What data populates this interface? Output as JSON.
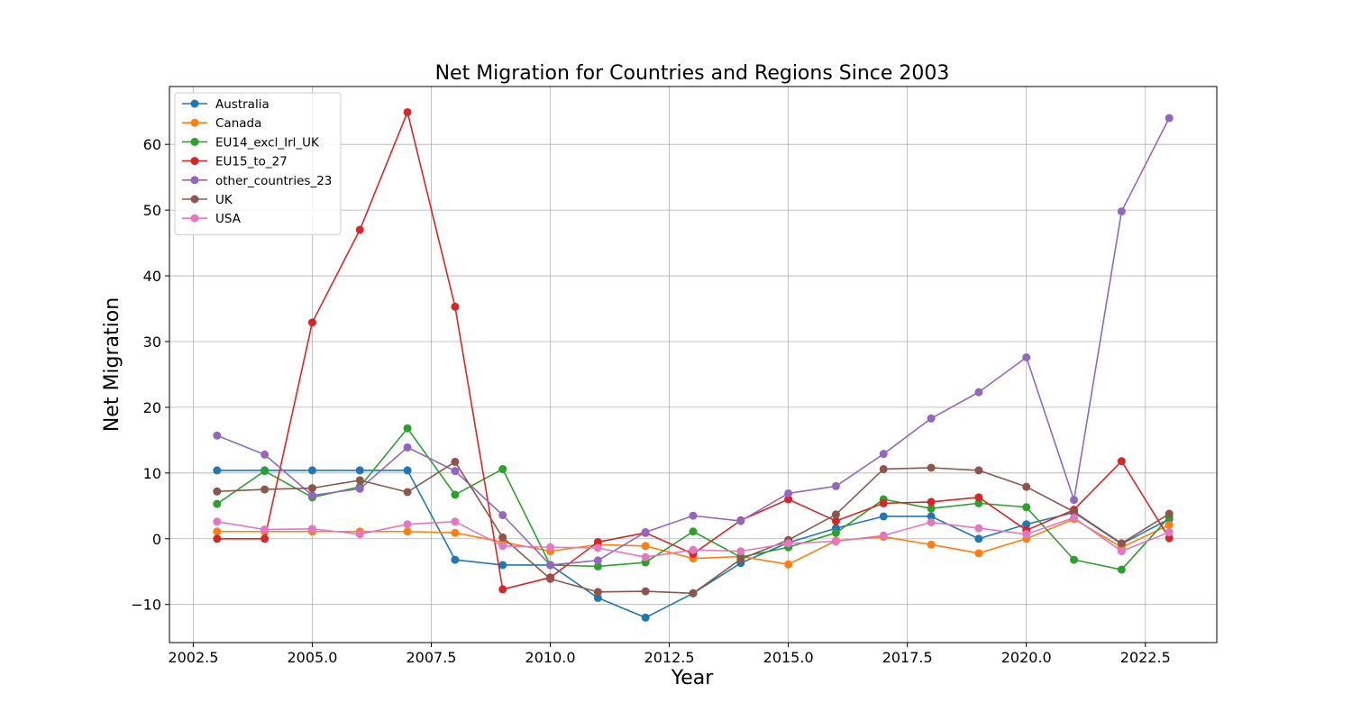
{
  "chart_data": {
    "type": "line",
    "title": "Net Migration for Countries and Regions Since 2003",
    "xlabel": "Year",
    "ylabel": "Net Migration",
    "xlim": [
      2002.0,
      2024.0
    ],
    "ylim": [
      -15.8,
      68.8
    ],
    "xticks": [
      2002.5,
      2005.0,
      2007.5,
      2010.0,
      2012.5,
      2015.0,
      2017.5,
      2020.0,
      2022.5
    ],
    "xtick_labels": [
      "2002.5",
      "2005.0",
      "2007.5",
      "2010.0",
      "2012.5",
      "2015.0",
      "2017.5",
      "2020.0",
      "2022.5"
    ],
    "yticks": [
      -10,
      0,
      10,
      20,
      30,
      40,
      50,
      60
    ],
    "ytick_labels": [
      "−10",
      "0",
      "10",
      "20",
      "30",
      "40",
      "50",
      "60"
    ],
    "grid": true,
    "legend_position": "top-left",
    "x": [
      2003,
      2004,
      2005,
      2006,
      2007,
      2008,
      2009,
      2010,
      2011,
      2012,
      2013,
      2014,
      2015,
      2016,
      2017,
      2018,
      2019,
      2020,
      2021,
      2022,
      2023
    ],
    "series": [
      {
        "name": "Australia",
        "color": "#1f77b4",
        "values": [
          10.4,
          10.4,
          10.4,
          10.4,
          10.4,
          -3.2,
          -4.0,
          -4.0,
          -9.0,
          -12.0,
          -8.3,
          -3.7,
          -0.6,
          1.6,
          3.4,
          3.4,
          0.0,
          2.2,
          4.0,
          -0.8,
          3.0
        ]
      },
      {
        "name": "Canada",
        "color": "#ff7f0e",
        "values": [
          1.1,
          1.1,
          1.1,
          1.1,
          1.1,
          0.9,
          -0.5,
          -1.9,
          -0.9,
          -1.1,
          -3.0,
          -2.7,
          -3.9,
          -0.3,
          0.3,
          -0.9,
          -2.2,
          0.0,
          3.0,
          -1.3,
          2.1
        ]
      },
      {
        "name": "EU14_excl_Irl_UK",
        "color": "#2ca02c",
        "values": [
          5.3,
          10.3,
          6.3,
          7.9,
          16.8,
          6.7,
          10.6,
          -4.0,
          -4.2,
          -3.6,
          1.1,
          -2.8,
          -1.3,
          0.9,
          6.0,
          4.6,
          5.4,
          4.8,
          -3.2,
          -4.7,
          3.3
        ]
      },
      {
        "name": "EU15_to_27",
        "color": "#d62728",
        "values": [
          0.0,
          0.0,
          32.9,
          47.0,
          64.9,
          35.3,
          -7.7,
          -5.9,
          -0.5,
          0.9,
          -2.3,
          2.8,
          6.0,
          2.7,
          5.4,
          5.6,
          6.3,
          1.3,
          4.4,
          11.8,
          0.1
        ]
      },
      {
        "name": "other_countries_23",
        "color": "#9467bd",
        "values": [
          15.7,
          12.8,
          6.6,
          7.6,
          13.9,
          10.3,
          3.6,
          -4.0,
          -3.3,
          1.0,
          3.5,
          2.7,
          6.9,
          8.0,
          12.9,
          18.3,
          22.3,
          27.6,
          5.9,
          49.8,
          64.0
        ]
      },
      {
        "name": "UK",
        "color": "#8c564b",
        "values": [
          7.2,
          7.5,
          7.7,
          8.9,
          7.1,
          11.7,
          0.2,
          -6.1,
          -8.1,
          -8.0,
          -8.3,
          -3.1,
          -0.2,
          3.7,
          10.6,
          10.8,
          10.4,
          7.9,
          4.1,
          -0.7,
          3.8
        ]
      },
      {
        "name": "USA",
        "color": "#e377c2",
        "values": [
          2.6,
          1.4,
          1.5,
          0.7,
          2.2,
          2.6,
          -1.1,
          -1.3,
          -1.4,
          -2.8,
          -1.7,
          -1.9,
          -0.7,
          -0.4,
          0.5,
          2.5,
          1.6,
          0.7,
          3.2,
          -1.9,
          1.0
        ]
      }
    ]
  }
}
